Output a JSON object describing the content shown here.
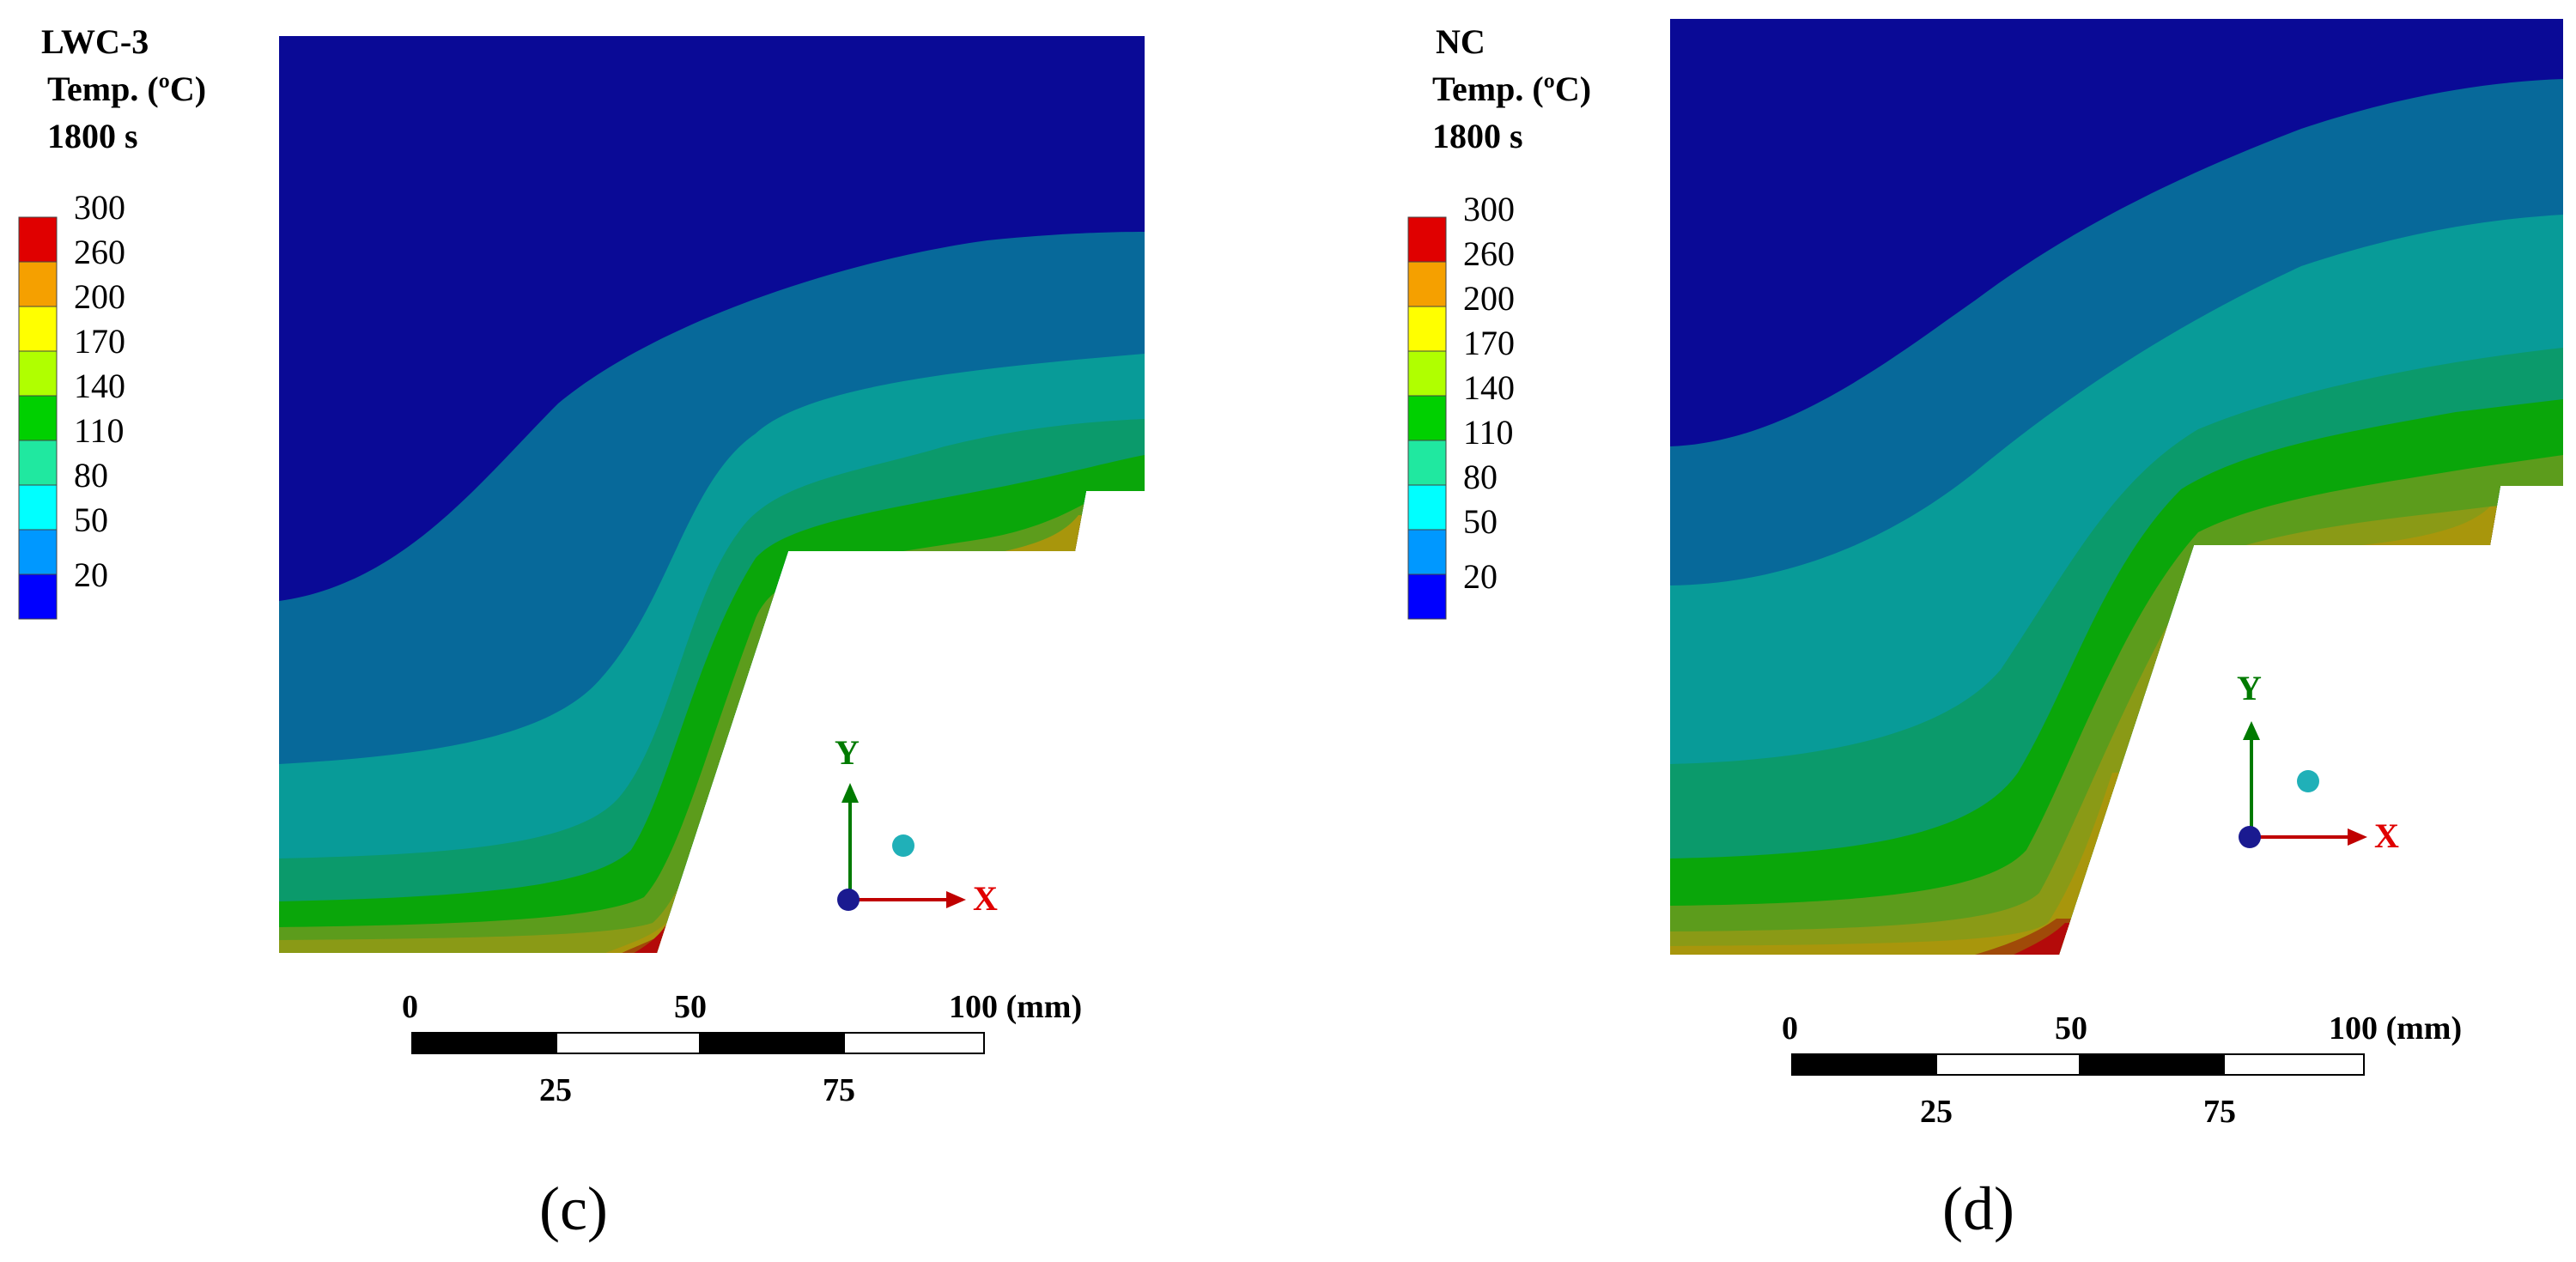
{
  "contour_colors": [
    "#0a0a96",
    "#07699a",
    "#089b98",
    "#0b9a6b",
    "#0aa60a",
    "#5c9c1c",
    "#8a9a16",
    "#a8960c",
    "#a04a08",
    "#b40a0a"
  ],
  "legend_colors": [
    "#e00000",
    "#f5a000",
    "#ffff00",
    "#b0ff00",
    "#00d000",
    "#20e8a0",
    "#00ffff",
    "#0098ff",
    "#0000ff"
  ],
  "legend_values": [
    "300",
    "260",
    "200",
    "170",
    "140",
    "110",
    "80",
    "50",
    "20"
  ],
  "scale_top_labels": [
    "0",
    "50",
    "100 (mm)"
  ],
  "scale_bottom_labels": [
    "25",
    "75"
  ],
  "panels": [
    {
      "id": "c",
      "title_lines": [
        "LWC-3",
        "Temp. (ºC)",
        "1800 s"
      ],
      "panel_label": "(c)",
      "axis_x": "X",
      "axis_y": "Y"
    },
    {
      "id": "d",
      "title_lines": [
        "NC",
        "Temp. (ºC)",
        "1800 s"
      ],
      "panel_label": "(d)",
      "axis_x": "X",
      "axis_y": "Y"
    }
  ]
}
